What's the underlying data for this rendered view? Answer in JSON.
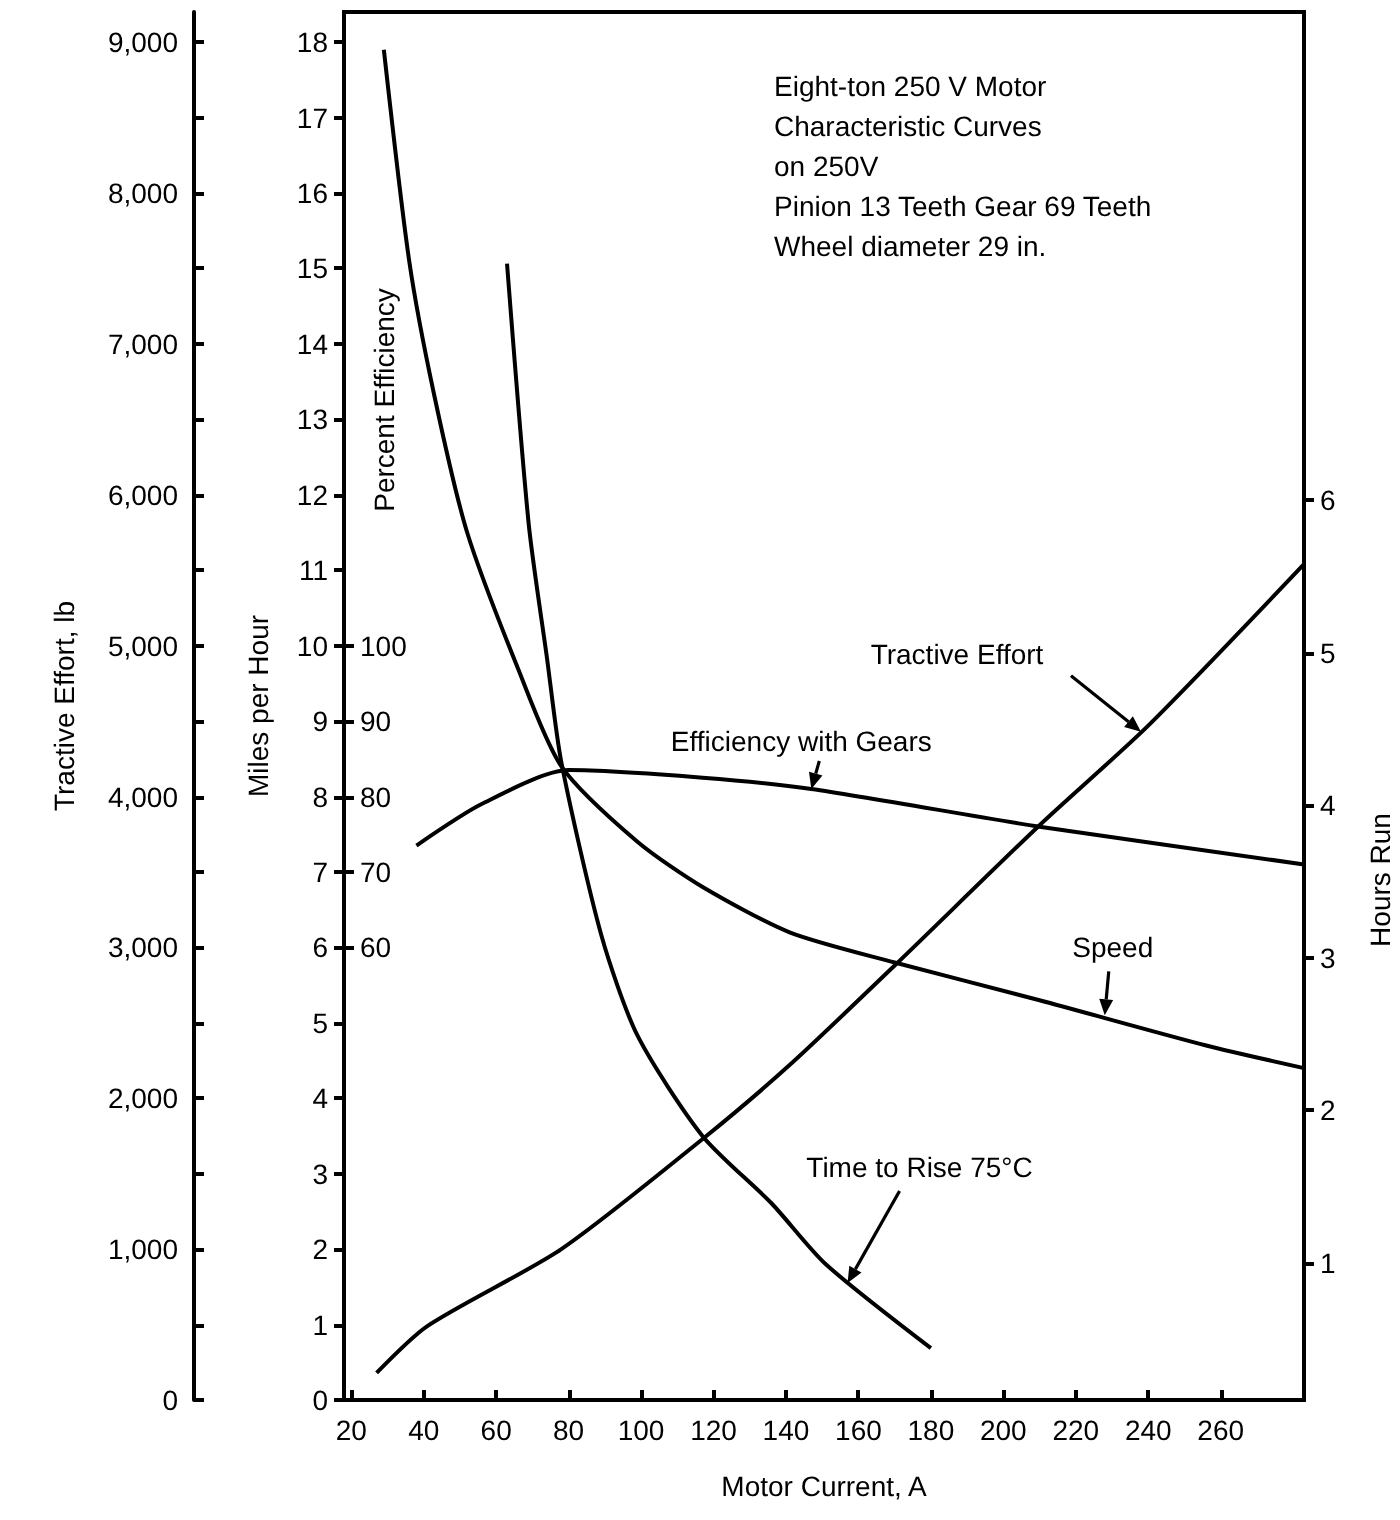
{
  "chart_data": [
    {
      "type": "line",
      "title": "Eight-ton 250 V Motor\nCharacteristic Curves\non 250V\nPinion 13 Teeth Gear 69 Teeth\nWheel diameter 29 in.",
      "xlabel": "Motor Current, A",
      "ylabel": "Miles per Hour",
      "y2label": "Hours Run",
      "y3label": "Percent Efficiency",
      "marker": "none",
      "series": [
        {
          "color": "#000000",
          "x": [
            29,
            36,
            43,
            52,
            66,
            78,
            99,
            117,
            141,
            170,
            210,
            256,
            283
          ],
          "values": [
            17.9,
            15.1,
            13.3,
            11.5,
            9.7,
            8.4,
            7.4,
            6.8,
            6.2,
            5.8,
            5.3,
            4.7,
            4.4
          ]
        },
        {
          "axis": "y3",
          "color": "#000000",
          "x": [
            38,
            56,
            80,
            117,
            147,
            210,
            283
          ],
          "values": [
            73.5,
            79,
            83.5,
            82.5,
            81,
            76,
            71
          ]
        },
        {
          "axis": "y2",
          "color": "#000000",
          "x": [
            63,
            69,
            74,
            78,
            89,
            99,
            117,
            136,
            151,
            180
          ],
          "values": [
            7.55,
            5.84,
            4.97,
            4.28,
            3.15,
            2.49,
            1.83,
            1.39,
            0.99,
            0.44
          ]
        }
      ],
      "annotations": [
        {
          "text": "Efficiency with Gears",
          "x": 147,
          "y": 8.1
        },
        {
          "text": "Speed",
          "x": 228,
          "y": 5.1
        },
        {
          "text": "Time to Rise 75°C",
          "x": 157,
          "y": 1.55
        }
      ],
      "xlim": [
        18,
        283
      ],
      "xticks": [
        20,
        40,
        60,
        80,
        100,
        120,
        140,
        160,
        180,
        200,
        220,
        240,
        260
      ],
      "ylim": [
        0,
        18.4
      ],
      "yticks": [
        0,
        1,
        2,
        3,
        4,
        5,
        6,
        7,
        8,
        9,
        10,
        11,
        12,
        13,
        14,
        15,
        16,
        17,
        18
      ],
      "y2lim": [
        0.1,
        9.2
      ],
      "y2ticks": [
        1,
        2,
        3,
        4,
        5,
        6
      ],
      "y3lim": [
        0,
        184
      ],
      "y3ticks": [
        60,
        70,
        80,
        90,
        100
      ]
    },
    {
      "type": "line",
      "ylabel": "Tractive Effort, lb",
      "marker": "none",
      "tick_labels": "y",
      "series": [
        {
          "color": "#000000",
          "x": [
            27,
            41,
            78,
            117,
            141,
            170,
            210,
            240,
            283
          ],
          "values": [
            180,
            490,
            1000,
            1730,
            2220,
            2880,
            3810,
            4470,
            5540
          ]
        }
      ],
      "annotations": [
        {
          "text": "Tractive Effort",
          "x": 238,
          "y": 4430
        }
      ],
      "xlim": [
        18,
        283
      ],
      "ylim": [
        0,
        9200
      ],
      "yticks": [
        0,
        {
          "value": 500,
          "label": null
        },
        {
          "value": 1000,
          "label": "1,000"
        },
        {
          "value": 1500,
          "label": null
        },
        {
          "value": 2000,
          "label": "2,000"
        },
        {
          "value": 2500,
          "label": null
        },
        {
          "value": 3000,
          "label": "3,000"
        },
        {
          "value": 3500,
          "label": null
        },
        {
          "value": 4000,
          "label": "4,000"
        },
        {
          "value": 4500,
          "label": null
        },
        {
          "value": 5000,
          "label": "5,000"
        },
        {
          "value": 5500,
          "label": null
        },
        {
          "value": 6000,
          "label": "6,000"
        },
        {
          "value": 6500,
          "label": null
        },
        {
          "value": 7000,
          "label": "7,000"
        },
        {
          "value": 7500,
          "label": null
        },
        {
          "value": 8000,
          "label": "8,000"
        },
        {
          "value": 8500,
          "label": null
        },
        {
          "value": 9000,
          "label": "9,000"
        }
      ]
    }
  ]
}
